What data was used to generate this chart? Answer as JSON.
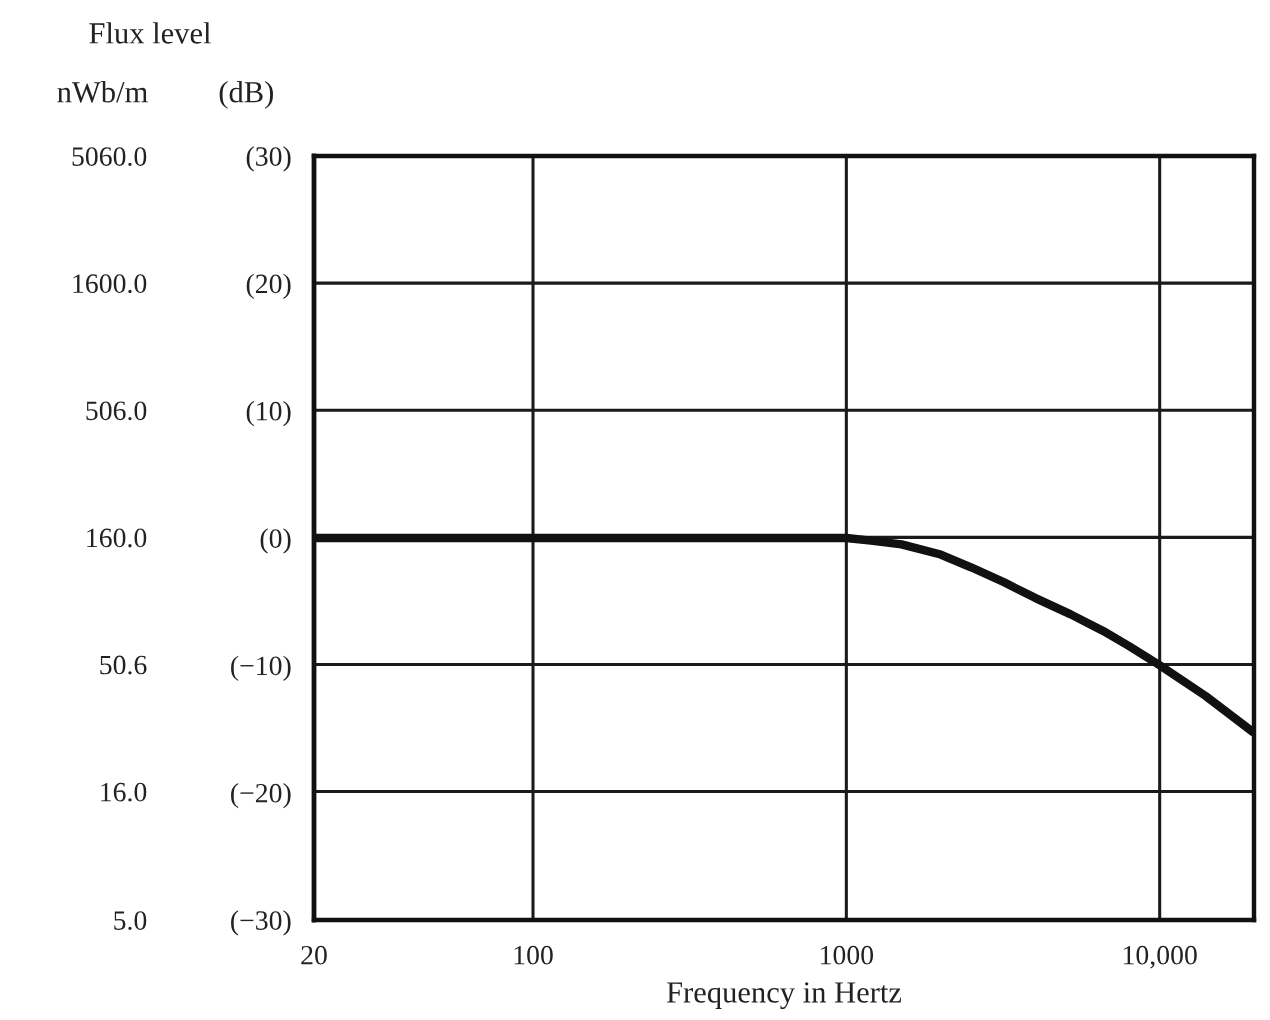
{
  "chart_data": {
    "type": "line",
    "xlabel": "Frequency in Hertz",
    "ylabel": "nWb/m",
    "y2label": "(dB)",
    "annotations": [
      "Flux level"
    ],
    "x": [
      20,
      100,
      500,
      1000,
      1200,
      1500,
      2000,
      2500,
      3200,
      4000,
      5200,
      6600,
      8000,
      10000,
      14000,
      20000
    ],
    "series": [
      {
        "color": "#111111",
        "axis": "y2",
        "values": [
          0,
          0,
          0,
          0,
          -0.2,
          -0.5,
          -1.3,
          -2.3,
          -3.5,
          -4.7,
          -6.0,
          -7.3,
          -8.5,
          -10,
          -12.4,
          -15.3
        ]
      }
    ],
    "log": "xy",
    "xlim": [
      20,
      20000
    ],
    "xticks": [
      20,
      100,
      1000,
      {
        "value": 10000,
        "label": "10,000"
      }
    ],
    "ylim": [
      5.0,
      5060
    ],
    "yticks": [
      {
        "value": 5060,
        "label": "5060.0"
      },
      {
        "value": 1600,
        "label": "1600.0"
      },
      {
        "value": 506,
        "label": "506.0"
      },
      {
        "value": 160,
        "label": "160.0"
      },
      50.6,
      {
        "value": 16,
        "label": "16.0"
      },
      {
        "value": 5.0,
        "label": "5.0"
      }
    ],
    "y2lim": [
      -30,
      30
    ],
    "y2ticks": [
      {
        "value": 30,
        "label": "(30)"
      },
      {
        "value": 20,
        "label": "(20)"
      },
      {
        "value": 10,
        "label": "(10)"
      },
      {
        "value": 0,
        "label": "(0)"
      },
      {
        "value": -10,
        "label": "(−10)"
      },
      {
        "value": -20,
        "label": "(−20)"
      },
      {
        "value": -30,
        "label": "(−30)"
      }
    ],
    "grid": true
  }
}
